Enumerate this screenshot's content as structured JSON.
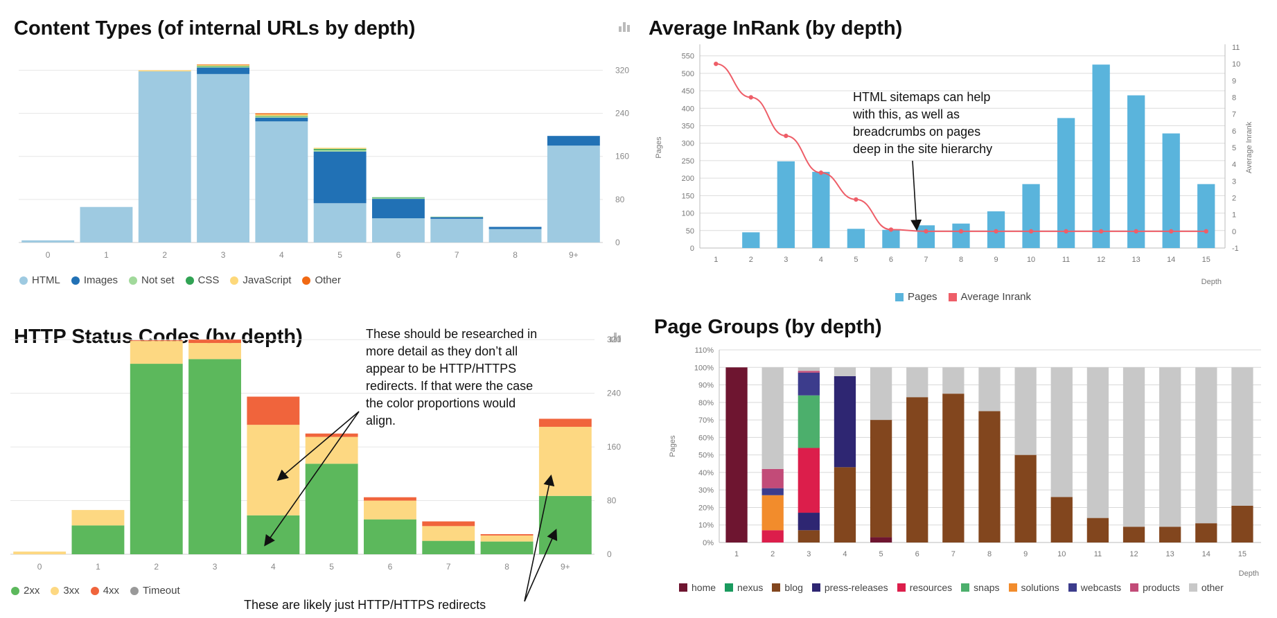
{
  "chart_data": [
    {
      "id": "content",
      "type": "bar",
      "stacked": true,
      "title": "Content Types (of internal URLs by depth)",
      "categories": [
        "0",
        "1",
        "2",
        "3",
        "4",
        "5",
        "6",
        "7",
        "8",
        "9+"
      ],
      "y_ticks": [
        0,
        80,
        160,
        240,
        320
      ],
      "ylim": [
        0,
        345
      ],
      "grid": true,
      "legend_position": "bottom-left",
      "series": [
        {
          "name": "HTML",
          "color": "#9ecae1",
          "values": [
            4,
            66,
            318,
            313,
            225,
            73,
            45,
            44,
            25,
            180
          ]
        },
        {
          "name": "Images",
          "color": "#2171b5",
          "values": [
            0,
            0,
            0,
            12,
            7,
            96,
            36,
            3,
            4,
            18
          ]
        },
        {
          "name": "Not set",
          "color": "#a1d99b",
          "values": [
            0,
            0,
            0,
            2,
            2,
            3,
            2,
            1,
            0,
            0
          ]
        },
        {
          "name": "CSS",
          "color": "#31a354",
          "values": [
            0,
            0,
            0,
            1,
            1,
            2,
            1,
            0,
            0,
            0
          ]
        },
        {
          "name": "JavaScript",
          "color": "#fdd87a",
          "values": [
            0,
            0,
            2,
            2,
            3,
            2,
            0,
            0,
            0,
            0
          ]
        },
        {
          "name": "Other",
          "color": "#f16913",
          "values": [
            0,
            0,
            0,
            1,
            2,
            0,
            0,
            0,
            0,
            0
          ]
        }
      ]
    },
    {
      "id": "inrank",
      "type": "bar",
      "title": "Average InRank (by depth)",
      "categories": [
        "1",
        "2",
        "3",
        "4",
        "5",
        "6",
        "7",
        "8",
        "9",
        "10",
        "11",
        "12",
        "13",
        "14",
        "15"
      ],
      "xlabel": "Depth",
      "ylabel": "Pages",
      "y2label": "Average Inrank",
      "y_ticks": [
        0,
        50,
        100,
        150,
        200,
        250,
        300,
        350,
        400,
        450,
        500,
        550
      ],
      "ylim": [
        0,
        575
      ],
      "y2_ticks": [
        -1,
        0,
        1,
        2,
        3,
        4,
        5,
        6,
        7,
        8,
        9,
        10,
        11
      ],
      "y2lim": [
        -1,
        11
      ],
      "grid": true,
      "legend_position": "bottom-center",
      "series": [
        {
          "name": "Pages",
          "type": "bar",
          "color": "#5ab4dc",
          "values": [
            0,
            45,
            248,
            218,
            55,
            52,
            65,
            70,
            105,
            183,
            372,
            525,
            437,
            328,
            183
          ]
        },
        {
          "name": "Average Inrank",
          "type": "line",
          "axis": "right",
          "color": "#ee5e68",
          "values": [
            10,
            8,
            5.7,
            3.5,
            1.9,
            0.1,
            0,
            0,
            0,
            0,
            0,
            0,
            0,
            0,
            0
          ]
        }
      ]
    },
    {
      "id": "status",
      "type": "bar",
      "stacked": true,
      "title": "HTTP Status Codes (by depth)",
      "categories": [
        "0",
        "1",
        "2",
        "3",
        "4",
        "5",
        "6",
        "7",
        "8",
        "9+"
      ],
      "y_ticks": [
        0,
        80,
        160,
        240,
        320
      ],
      "ylim": [
        0,
        345
      ],
      "grid": true,
      "legend_position": "bottom-left",
      "series": [
        {
          "name": "2xx",
          "color": "#5cb85c",
          "values": [
            0,
            43,
            284,
            291,
            58,
            135,
            52,
            20,
            19,
            87
          ]
        },
        {
          "name": "3xx",
          "color": "#fdd882",
          "values": [
            4,
            23,
            34,
            24,
            135,
            40,
            28,
            22,
            9,
            103
          ]
        },
        {
          "name": "4xx",
          "color": "#f0643c",
          "values": [
            0,
            0,
            1,
            5,
            42,
            5,
            5,
            7,
            2,
            12
          ]
        },
        {
          "name": "Timeout",
          "color": "#999999",
          "values": [
            0,
            0,
            0,
            0,
            0,
            0,
            0,
            0,
            0,
            0
          ]
        }
      ]
    },
    {
      "id": "groups",
      "type": "bar",
      "stacked": true,
      "percent": true,
      "title": "Page Groups (by depth)",
      "categories": [
        "1",
        "2",
        "3",
        "4",
        "5",
        "6",
        "7",
        "8",
        "9",
        "10",
        "11",
        "12",
        "13",
        "14",
        "15"
      ],
      "xlabel": "Depth",
      "ylabel": "Pages",
      "y_ticks": [
        "0%",
        "10%",
        "20%",
        "30%",
        "40%",
        "50%",
        "60%",
        "70%",
        "80%",
        "90%",
        "100%",
        "110%"
      ],
      "ylim": [
        0,
        110
      ],
      "grid": true,
      "legend_position": "bottom-center",
      "series": [
        {
          "name": "home",
          "color": "#6e1530",
          "values": [
            100,
            0,
            0,
            0,
            3,
            0,
            0,
            0,
            0,
            0,
            0,
            0,
            0,
            0,
            0
          ]
        },
        {
          "name": "nexus",
          "color": "#1a9a5e",
          "values": [
            0,
            0,
            0,
            0,
            0,
            0,
            0,
            0,
            0,
            0,
            0,
            0,
            0,
            0,
            0
          ]
        },
        {
          "name": "blog",
          "color": "#82461e",
          "values": [
            0,
            0,
            7,
            43,
            67,
            83,
            85,
            75,
            50,
            26,
            14,
            9,
            9,
            11,
            21
          ]
        },
        {
          "name": "press-releases",
          "color": "#2e2672",
          "values": [
            0,
            0,
            10,
            52,
            0,
            0,
            0,
            0,
            0,
            0,
            0,
            0,
            0,
            0,
            0
          ]
        },
        {
          "name": "resources",
          "color": "#dc1e4b",
          "values": [
            0,
            7,
            37,
            0,
            0,
            0,
            0,
            0,
            0,
            0,
            0,
            0,
            0,
            0,
            0
          ]
        },
        {
          "name": "snaps",
          "color": "#4caf6c",
          "values": [
            0,
            0,
            30,
            0,
            0,
            0,
            0,
            0,
            0,
            0,
            0,
            0,
            0,
            0,
            0
          ]
        },
        {
          "name": "solutions",
          "color": "#f28c2c",
          "values": [
            0,
            20,
            0,
            0,
            0,
            0,
            0,
            0,
            0,
            0,
            0,
            0,
            0,
            0,
            0
          ]
        },
        {
          "name": "webcasts",
          "color": "#3c3c8c",
          "values": [
            0,
            4,
            13,
            0,
            0,
            0,
            0,
            0,
            0,
            0,
            0,
            0,
            0,
            0,
            0
          ]
        },
        {
          "name": "products",
          "color": "#c24b78",
          "values": [
            0,
            11,
            1,
            0,
            0,
            0,
            0,
            0,
            0,
            0,
            0,
            0,
            0,
            0,
            0
          ]
        },
        {
          "name": "other",
          "color": "#c8c8c8",
          "values": [
            0,
            58,
            2,
            5,
            30,
            17,
            15,
            25,
            50,
            74,
            86,
            91,
            91,
            89,
            79
          ]
        }
      ]
    }
  ],
  "annotations": {
    "sitemaps": "HTML sitemaps can help\nwith this, as well as\nbreadcrumbs on pages\ndeep in the site hierarchy",
    "research": "These should be researched in\nmore detail as they don’t all\nappear to be HTTP/HTTPS\nredirects. If that were the case\nthe color proportions would\nalign.",
    "redirects": "These are likely just HTTP/HTTPS redirects"
  },
  "icons": {
    "chart_type": "bar-chart-icon"
  }
}
